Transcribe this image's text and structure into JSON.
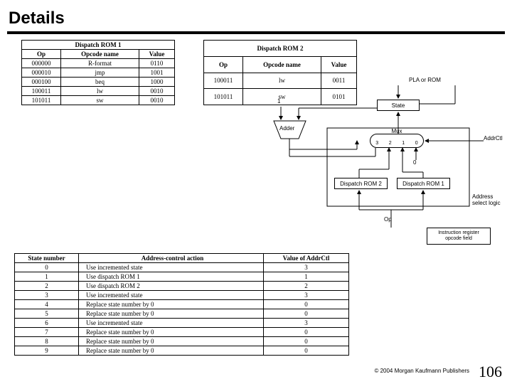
{
  "title": "Details",
  "footer": "© 2004 Morgan Kaufmann Publishers",
  "page": "106",
  "table1": {
    "caption": "Dispatch ROM 1",
    "headers": [
      "Op",
      "Opcode name",
      "Value"
    ],
    "rows": [
      [
        "000000",
        "R-format",
        "0110"
      ],
      [
        "000010",
        "jmp",
        "1001"
      ],
      [
        "000100",
        "beq",
        "1000"
      ],
      [
        "100011",
        "lw",
        "0010"
      ],
      [
        "101011",
        "sw",
        "0010"
      ]
    ]
  },
  "table2": {
    "caption": "Dispatch ROM 2",
    "headers": [
      "Op",
      "Opcode name",
      "Value"
    ],
    "rows": [
      [
        "100011",
        "lw",
        "0011"
      ],
      [
        "101011",
        "sw",
        "0101"
      ]
    ]
  },
  "table3": {
    "headers": [
      "State number",
      "Address-control action",
      "Value of AddrCtl"
    ],
    "rows": [
      [
        "0",
        "Use incremented state",
        "3"
      ],
      [
        "1",
        "Use dispatch ROM 1",
        "1"
      ],
      [
        "2",
        "Use dispatch ROM 2",
        "2"
      ],
      [
        "3",
        "Use incremented state",
        "3"
      ],
      [
        "4",
        "Replace state number by 0",
        "0"
      ],
      [
        "5",
        "Replace state number by 0",
        "0"
      ],
      [
        "6",
        "Use incremented state",
        "3"
      ],
      [
        "7",
        "Replace state number by 0",
        "0"
      ],
      [
        "8",
        "Replace state number by 0",
        "0"
      ],
      [
        "9",
        "Replace state number by 0",
        "0"
      ]
    ]
  },
  "diagram": {
    "pla_label": "PLA or ROM",
    "adder_label": "Adder",
    "state_label": "State",
    "mux_label": "Mux",
    "mux_inputs": [
      "3",
      "2",
      "1",
      "0"
    ],
    "drom2_label": "Dispatch ROM 2",
    "drom1_label": "Dispatch ROM 1",
    "addrctl_label": "AddrCtl",
    "asl_label": "Address select logic",
    "one_label": "1",
    "zero_label": "0",
    "op_label": "Op",
    "ir_label": "Instruction register\nopcode field"
  },
  "colors": {
    "line": "#000000",
    "bg": "#ffffff"
  }
}
